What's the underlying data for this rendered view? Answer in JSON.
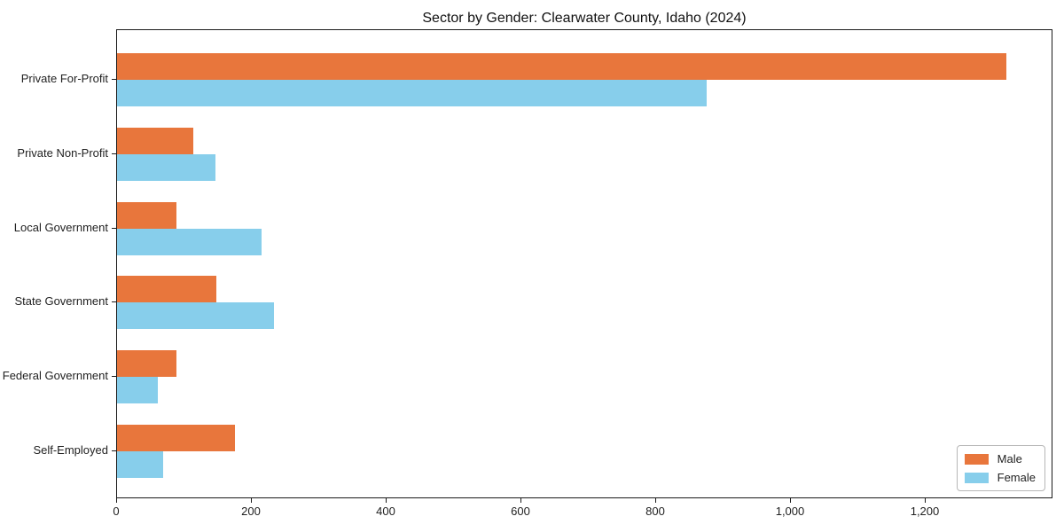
{
  "chart_data": {
    "type": "bar",
    "orientation": "horizontal",
    "title": "Sector by Gender: Clearwater County, Idaho (2024)",
    "categories": [
      "Private For-Profit",
      "Private Non-Profit",
      "Local Government",
      "State Government",
      "Federal Government",
      "Self-Employed"
    ],
    "series": [
      {
        "name": "Male",
        "color": "#e8763c",
        "values": [
          1320,
          113,
          88,
          148,
          88,
          175
        ]
      },
      {
        "name": "Female",
        "color": "#87ceeb",
        "values": [
          875,
          146,
          214,
          233,
          60,
          68
        ]
      }
    ],
    "xlim": [
      0,
      1390
    ],
    "x_ticks": [
      0,
      200,
      400,
      600,
      800,
      1000,
      1200
    ],
    "x_tick_labels": [
      "0",
      "200",
      "400",
      "600",
      "800",
      "1,000",
      "1,200"
    ],
    "xlabel": "",
    "ylabel": "",
    "grid": false,
    "legend": {
      "position": "lower right",
      "entries": [
        "Male",
        "Female"
      ]
    }
  }
}
